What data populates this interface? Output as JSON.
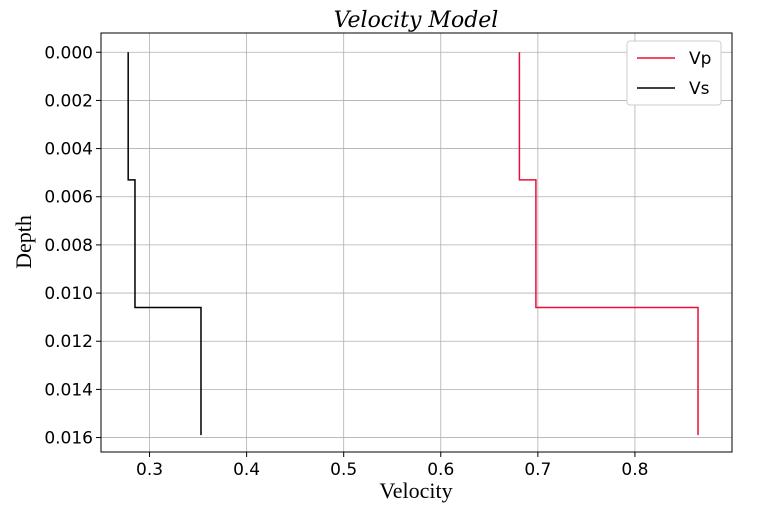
{
  "chart_data": {
    "type": "line",
    "title": "Velocity Model",
    "xlabel": "Velocity",
    "ylabel": "Depth",
    "xlim": [
      0.25,
      0.9
    ],
    "ylim": [
      0.0166,
      -0.0008
    ],
    "y_inverted": true,
    "x_ticks": [
      0.3,
      0.4,
      0.5,
      0.6,
      0.7,
      0.8
    ],
    "x_tick_labels": [
      "0.3",
      "0.4",
      "0.5",
      "0.6",
      "0.7",
      "0.8"
    ],
    "y_ticks": [
      0.0,
      0.002,
      0.004,
      0.006,
      0.008,
      0.01,
      0.012,
      0.014,
      0.016
    ],
    "y_tick_labels": [
      "0.000",
      "0.002",
      "0.004",
      "0.006",
      "0.008",
      "0.010",
      "0.012",
      "0.014",
      "0.016"
    ],
    "grid": true,
    "legend_position": "top-right",
    "series": [
      {
        "name": "Vp",
        "color": "#e8103a",
        "points": [
          [
            0.681,
            0.0
          ],
          [
            0.681,
            0.0053
          ],
          [
            0.698,
            0.0053
          ],
          [
            0.698,
            0.0106
          ],
          [
            0.865,
            0.0106
          ],
          [
            0.865,
            0.0159
          ]
        ]
      },
      {
        "name": "Vs",
        "color": "#000000",
        "points": [
          [
            0.278,
            0.0
          ],
          [
            0.278,
            0.0053
          ],
          [
            0.285,
            0.0053
          ],
          [
            0.285,
            0.0106
          ],
          [
            0.353,
            0.0106
          ],
          [
            0.353,
            0.0159
          ]
        ]
      }
    ]
  }
}
